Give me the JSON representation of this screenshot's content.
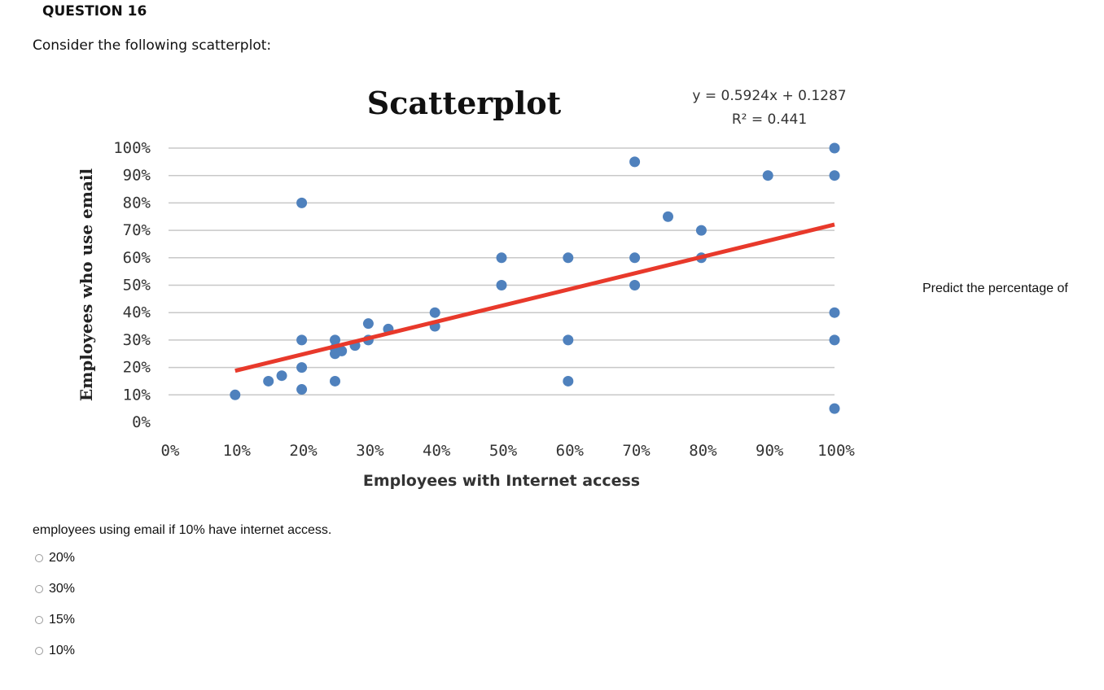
{
  "question": {
    "title": "QUESTION 16",
    "intro": "Consider the following scatterplot:",
    "side_text": "Predict the percentage of",
    "continuation": "employees using email if 10% have internet access.",
    "options": [
      "20%",
      "30%",
      "15%",
      "10%"
    ]
  },
  "colors": {
    "point": "#4f81bd",
    "trendline": "#e8392b",
    "grid": "#c8c8c8"
  },
  "chart_data": {
    "type": "scatter",
    "title": "Scatterplot",
    "xlabel": "Employees with Internet access",
    "ylabel": "Employees who use email",
    "equation": "y = 0.5924x + 0.1287",
    "r_squared": "R² = 0.441",
    "xlim": [
      0,
      1
    ],
    "ylim": [
      0,
      1
    ],
    "x_ticks": [
      "0%",
      "10%",
      "20%",
      "30%",
      "40%",
      "50%",
      "60%",
      "70%",
      "80%",
      "90%",
      "100%"
    ],
    "y_ticks": [
      "0%",
      "10%",
      "20%",
      "30%",
      "40%",
      "50%",
      "60%",
      "70%",
      "80%",
      "90%",
      "100%"
    ],
    "grid": true,
    "trendline": {
      "slope": 0.5924,
      "intercept": 0.1287,
      "x_range": [
        0.1,
        1.0
      ]
    },
    "points": [
      [
        0.1,
        0.1
      ],
      [
        0.15,
        0.15
      ],
      [
        0.17,
        0.17
      ],
      [
        0.2,
        0.8
      ],
      [
        0.2,
        0.3
      ],
      [
        0.2,
        0.2
      ],
      [
        0.2,
        0.12
      ],
      [
        0.25,
        0.3
      ],
      [
        0.25,
        0.27
      ],
      [
        0.25,
        0.25
      ],
      [
        0.25,
        0.15
      ],
      [
        0.26,
        0.26
      ],
      [
        0.28,
        0.28
      ],
      [
        0.3,
        0.36
      ],
      [
        0.3,
        0.3
      ],
      [
        0.33,
        0.34
      ],
      [
        0.4,
        0.4
      ],
      [
        0.4,
        0.35
      ],
      [
        0.5,
        0.6
      ],
      [
        0.5,
        0.5
      ],
      [
        0.6,
        0.6
      ],
      [
        0.6,
        0.3
      ],
      [
        0.6,
        0.15
      ],
      [
        0.7,
        0.95
      ],
      [
        0.7,
        0.6
      ],
      [
        0.7,
        0.5
      ],
      [
        0.75,
        0.75
      ],
      [
        0.8,
        0.7
      ],
      [
        0.8,
        0.6
      ],
      [
        0.9,
        0.9
      ],
      [
        1.0,
        1.0
      ],
      [
        1.0,
        0.9
      ],
      [
        1.0,
        0.4
      ],
      [
        1.0,
        0.3
      ],
      [
        1.0,
        0.05
      ]
    ]
  }
}
